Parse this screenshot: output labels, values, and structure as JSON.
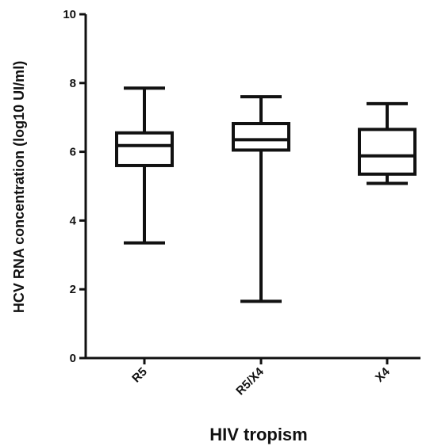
{
  "chart_data": {
    "type": "boxplot",
    "xlabel": "HIV tropism",
    "ylabel": "HCV RNA concentration (log10 UI/ml)",
    "ylim": [
      0,
      10
    ],
    "yticks": [
      0,
      2,
      4,
      6,
      8,
      10
    ],
    "grid": false,
    "categories": [
      "R5",
      "R5/X4",
      "X4"
    ],
    "boxes": [
      {
        "category": "R5",
        "min": 3.35,
        "q1": 5.6,
        "median": 6.18,
        "q3": 6.55,
        "max": 7.85
      },
      {
        "category": "R5/X4",
        "min": 1.65,
        "q1": 6.05,
        "median": 6.35,
        "q3": 6.82,
        "max": 7.6
      },
      {
        "category": "X4",
        "min": 5.08,
        "q1": 5.35,
        "median": 5.88,
        "q3": 6.65,
        "max": 7.4
      }
    ],
    "colors": {
      "stroke": "#111111",
      "background": "#ffffff"
    }
  }
}
